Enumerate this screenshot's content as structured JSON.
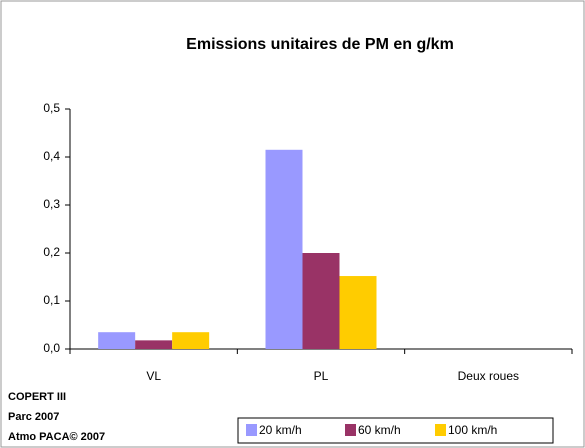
{
  "chart_data": {
    "type": "bar",
    "title": "Emissions unitaires de PM en g/km",
    "categories": [
      "VL",
      "PL",
      "Deux roues"
    ],
    "series": [
      {
        "name": "20 km/h",
        "color": "#9999ff",
        "values": [
          0.035,
          0.415,
          0
        ]
      },
      {
        "name": "60 km/h",
        "color": "#993366",
        "values": [
          0.018,
          0.2,
          0
        ]
      },
      {
        "name": "100 km/h",
        "color": "#ffcc00",
        "values": [
          0.035,
          0.152,
          0
        ]
      }
    ],
    "ylim": [
      0,
      0.5
    ],
    "yticks": [
      {
        "value": 0,
        "label": "0,0"
      },
      {
        "value": 0.1,
        "label": "0,1"
      },
      {
        "value": 0.2,
        "label": "0,2"
      },
      {
        "value": 0.3,
        "label": "0,3"
      },
      {
        "value": 0.4,
        "label": "0,4"
      },
      {
        "value": 0.5,
        "label": "0,5"
      }
    ],
    "grid": false,
    "legend": "bottom-right",
    "annotations": [
      "COPERT III",
      "Parc 2007",
      "Atmo PACA© 2007"
    ]
  }
}
